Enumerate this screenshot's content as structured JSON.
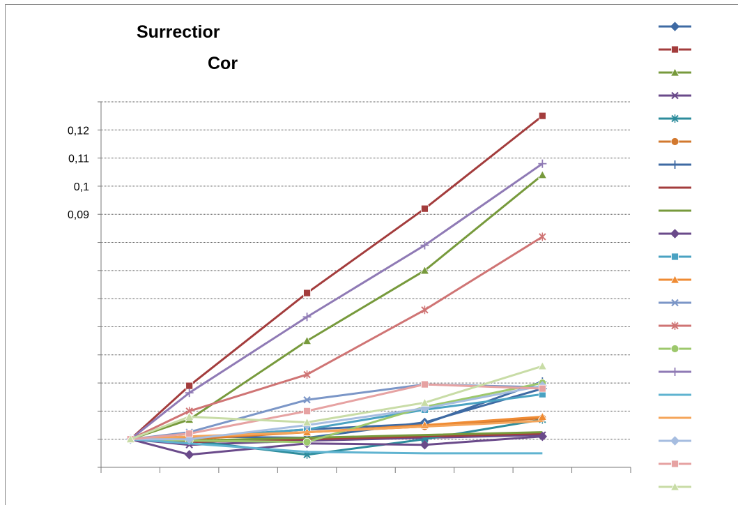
{
  "chart_data": {
    "type": "line",
    "title_line1": "Surrectior",
    "title_line2": "Cor",
    "y_tick_labels": [
      "0,12",
      "0,11",
      "0,1",
      "0,09"
    ],
    "ylim": [
      0.0,
      0.13
    ],
    "y_tick_values": [
      0.0,
      0.01,
      0.02,
      0.03,
      0.04,
      0.05,
      0.06,
      0.07,
      0.08,
      0.09,
      0.1,
      0.11,
      0.12,
      0.13
    ],
    "y_label_values": [
      0.12,
      0.11,
      0.1,
      0.09
    ],
    "x_categories": 9,
    "x_positions": [
      0.5,
      1.5,
      3.5,
      5.5,
      7.5
    ],
    "grid": "horizontal-dotted",
    "legend_position": "right",
    "series": [
      {
        "color": "#3e6aa3",
        "marker": "diamond",
        "values": [
          0.01,
          0.011,
          0.0105,
          0.016,
          0.028
        ]
      },
      {
        "color": "#a33c3c",
        "marker": "square",
        "values": [
          0.01,
          0.029,
          0.062,
          0.092,
          0.125
        ]
      },
      {
        "color": "#779a3c",
        "marker": "triangle",
        "values": [
          0.01,
          0.017,
          0.045,
          0.07,
          0.104
        ]
      },
      {
        "color": "#6a4a8a",
        "marker": "x",
        "values": [
          0.01,
          0.008,
          0.0095,
          0.0105,
          0.0115
        ]
      },
      {
        "color": "#2d8c9c",
        "marker": "star",
        "values": [
          0.01,
          0.0095,
          0.0045,
          0.01,
          0.017
        ]
      },
      {
        "color": "#d2782e",
        "marker": "circle",
        "values": [
          0.01,
          0.01,
          0.0125,
          0.0145,
          0.0175
        ]
      },
      {
        "color": "#3e6aa3",
        "marker": "plus",
        "values": [
          0.01,
          0.0105,
          0.0135,
          0.0155,
          0.0305
        ]
      },
      {
        "color": "#a33c3c",
        "marker": "none",
        "values": [
          0.01,
          0.009,
          0.01,
          0.011,
          0.012
        ]
      },
      {
        "color": "#779a3c",
        "marker": "none",
        "values": [
          0.01,
          0.0095,
          0.0105,
          0.0115,
          0.0125
        ]
      },
      {
        "color": "#6a4a8a",
        "marker": "diamond",
        "values": [
          0.01,
          0.0045,
          0.0085,
          0.008,
          0.011
        ]
      },
      {
        "color": "#4aa2c2",
        "marker": "square",
        "values": [
          0.01,
          0.0105,
          0.0135,
          0.0205,
          0.026
        ]
      },
      {
        "color": "#ef8b33",
        "marker": "triangle",
        "values": [
          0.01,
          0.0105,
          0.0125,
          0.015,
          0.018
        ]
      },
      {
        "color": "#7b96c7",
        "marker": "x",
        "values": [
          0.01,
          0.0125,
          0.024,
          0.0295,
          0.0285
        ]
      },
      {
        "color": "#cf7474",
        "marker": "star",
        "values": [
          0.01,
          0.02,
          0.033,
          0.056,
          0.082
        ]
      },
      {
        "color": "#9dc86c",
        "marker": "circle",
        "values": [
          0.01,
          0.0095,
          0.009,
          0.0215,
          0.03
        ]
      },
      {
        "color": "#8f7ab5",
        "marker": "plus",
        "values": [
          0.01,
          0.0265,
          0.0535,
          0.079,
          0.108
        ]
      },
      {
        "color": "#5fb3d0",
        "marker": "none",
        "values": [
          0.01,
          0.0085,
          0.0055,
          0.005,
          0.005
        ]
      },
      {
        "color": "#f5a55a",
        "marker": "none",
        "values": [
          0.01,
          0.011,
          0.0125,
          0.0145,
          0.0165
        ]
      },
      {
        "color": "#a6bde0",
        "marker": "diamond",
        "values": [
          0.01,
          0.01,
          0.015,
          0.021,
          0.029
        ]
      },
      {
        "color": "#e6a2a2",
        "marker": "square",
        "values": [
          0.01,
          0.012,
          0.02,
          0.0295,
          0.028
        ]
      },
      {
        "color": "#c8dca6",
        "marker": "triangle",
        "values": [
          0.01,
          0.018,
          0.016,
          0.023,
          0.036
        ]
      }
    ]
  }
}
